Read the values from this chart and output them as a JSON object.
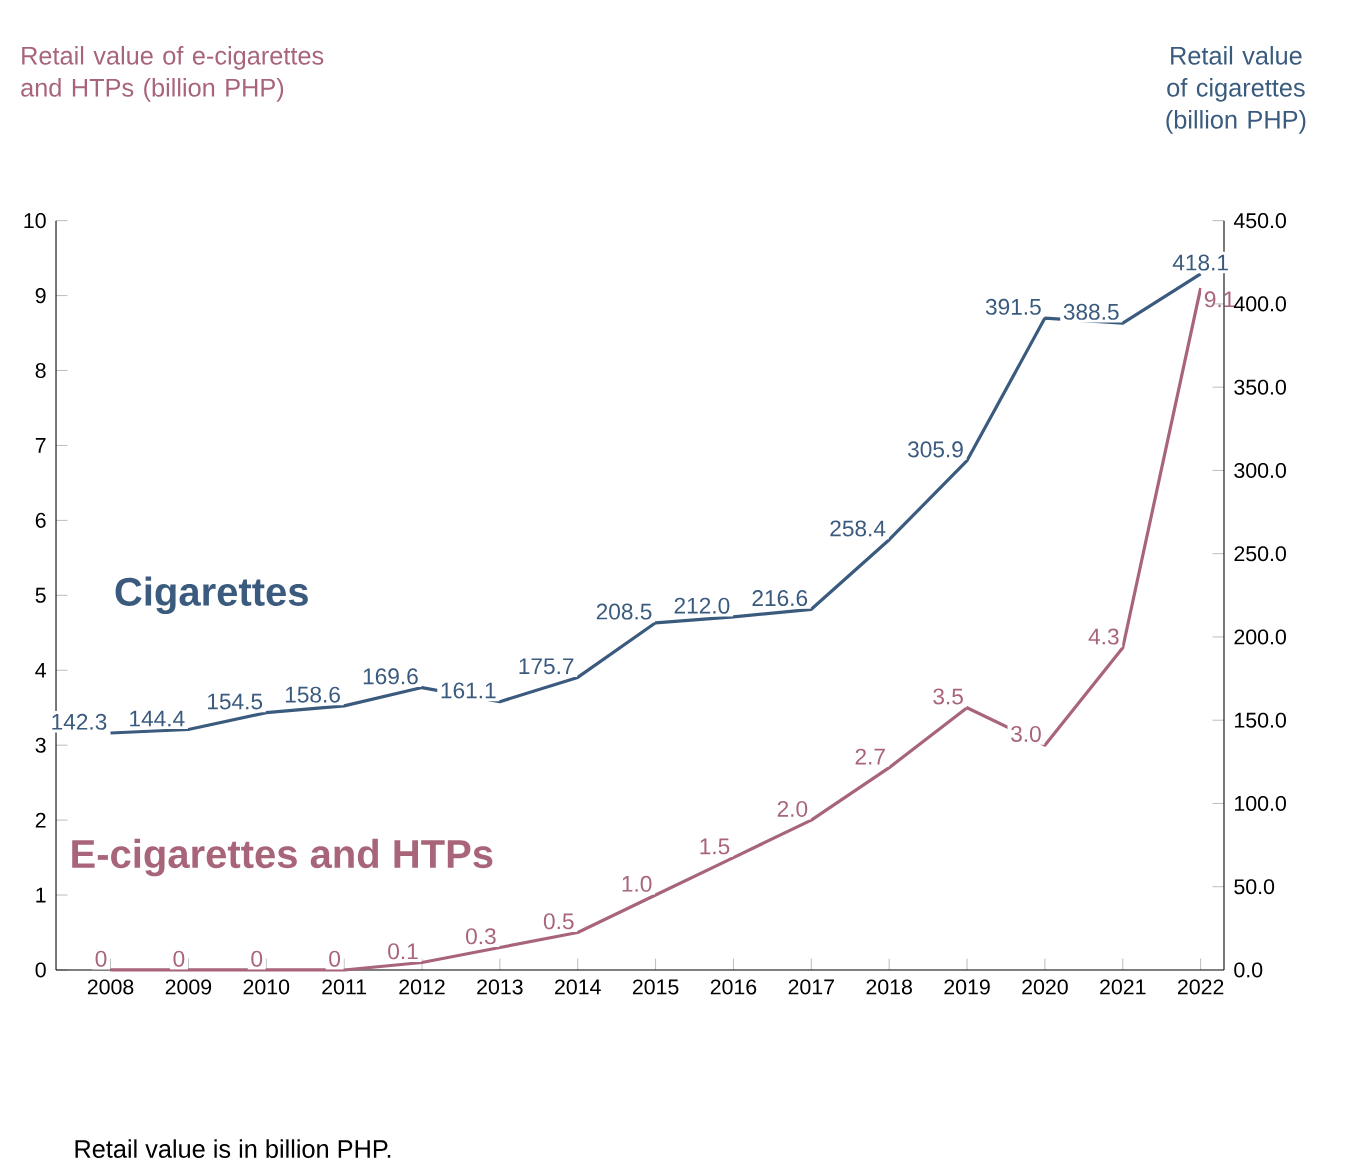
{
  "chart_data": {
    "type": "line",
    "ylabel": "Retail value of e-cigarettes and HTPs (billion PHP)",
    "y2label": "Retail value of cigarettes (billion PHP)",
    "categories": [
      "2008",
      "2009",
      "2010",
      "2011",
      "2012",
      "2013",
      "2014",
      "2015",
      "2016",
      "2017",
      "2018",
      "2019",
      "2020",
      "2021",
      "2022"
    ],
    "series": [
      {
        "name": "Cigarettes",
        "color": "#3b5b7e",
        "axis": "y2",
        "values": [
          142.3,
          144.4,
          154.5,
          158.6,
          169.6,
          161.1,
          175.7,
          208.5,
          212.0,
          216.6,
          258.4,
          305.9,
          391.5,
          388.5,
          418.1
        ],
        "value_labels": [
          "142.3",
          "144.4",
          "154.5",
          "158.6",
          "169.6",
          "161.1",
          "175.7",
          "208.5",
          "212.0",
          "216.6",
          "258.4",
          "305.9",
          "391.5",
          "388.5",
          "418.1"
        ]
      },
      {
        "name": "E-cigarettes and HTPs",
        "color": "#a8657a",
        "values": [
          0,
          0,
          0,
          0,
          0.1,
          0.3,
          0.5,
          1.0,
          1.5,
          2.0,
          2.7,
          3.5,
          3.0,
          4.3,
          9.1
        ],
        "value_labels": [
          "0",
          "0",
          "0",
          "0",
          "0.1",
          "0.3",
          "0.5",
          "1.0",
          "1.5",
          "2.0",
          "2.7",
          "3.5",
          "3.0",
          "4.3",
          "9.1"
        ]
      }
    ],
    "ylim": [
      0,
      10
    ],
    "yticks": [
      0,
      1,
      2,
      3,
      4,
      5,
      6,
      7,
      8,
      9,
      10
    ],
    "y2lim": [
      0,
      450
    ],
    "y2ticks": [
      {
        "value": 0,
        "label": "0.0"
      },
      {
        "value": 50,
        "label": "50.0"
      },
      {
        "value": 100,
        "label": "100.0"
      },
      {
        "value": 150,
        "label": "150.0"
      },
      {
        "value": 200,
        "label": "200.0"
      },
      {
        "value": 250,
        "label": "250.0"
      },
      {
        "value": 300,
        "label": "300.0"
      },
      {
        "value": 350,
        "label": "350.0"
      },
      {
        "value": 400,
        "label": "400.0"
      },
      {
        "value": 450,
        "label": "450.0"
      }
    ],
    "marker": "none",
    "line_style": "solid",
    "annotations": [
      "Retail value is in billion PHP."
    ]
  }
}
